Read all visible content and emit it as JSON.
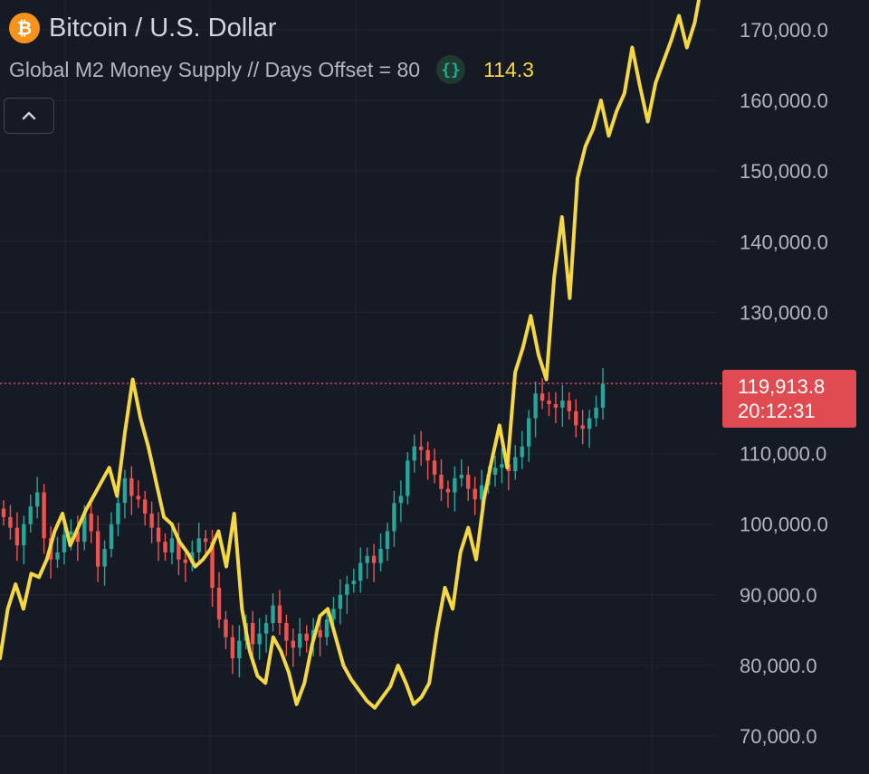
{
  "header": {
    "symbol_title": "Bitcoin / U.S. Dollar",
    "btc_logo_glyph": "₿",
    "indicator_name": "Global M2 Money Supply // Days Offset = 80",
    "indicator_icon": "{}",
    "indicator_value": "114.3",
    "collapse_icon": "^"
  },
  "price_label": {
    "price": "119,913.8",
    "countdown": "20:12:31"
  },
  "colors": {
    "background": "#161a25",
    "grid": "#232632",
    "m2_line": "#f5d742",
    "candle_up": "#26a69a",
    "candle_down": "#ef5350",
    "price_line": "#e04b52"
  },
  "chart_data": {
    "type": "line",
    "ylim": [
      67500,
      177500
    ],
    "y_ticks": [
      70000,
      80000,
      90000,
      100000,
      110000,
      120000,
      130000,
      140000,
      150000,
      160000,
      170000
    ],
    "y_tick_labels": [
      "70,000.0",
      "80,000.0",
      "90,000.0",
      "100,000.0",
      "110,000.0",
      "120,000.0",
      "130,000.0",
      "140,000.0",
      "150,000.0",
      "160,000.0",
      "170,000.0"
    ],
    "current_price": 119913.8,
    "series": [
      {
        "name": "Global M2 Money Supply",
        "style": "line",
        "values": [
          81000,
          88000,
          91500,
          88000,
          93000,
          92500,
          95000,
          99000,
          101500,
          97000,
          99500,
          102000,
          104000,
          106000,
          108000,
          104000,
          113000,
          120500,
          115000,
          111000,
          106000,
          101000,
          100000,
          97500,
          96000,
          94000,
          95000,
          96500,
          99000,
          94000,
          101500,
          88000,
          82000,
          78500,
          77500,
          84000,
          82000,
          79000,
          74500,
          77500,
          83000,
          87000,
          88000,
          84000,
          80000,
          78000,
          76500,
          75000,
          74000,
          75500,
          77000,
          80000,
          77500,
          74500,
          75500,
          77500,
          85000,
          91000,
          88000,
          96000,
          99500,
          95000,
          103500,
          109000,
          114000,
          108000,
          121500,
          125000,
          129500,
          124000,
          120500,
          135000,
          143500,
          132000,
          149000,
          153500,
          156000,
          160000,
          155000,
          158500,
          161000,
          167500,
          162000,
          157000,
          162500,
          165500,
          168500,
          172000,
          167500,
          171000,
          177000
        ],
        "color": "#f5d742"
      },
      {
        "name": "",
        "style": "candles",
        "values": [
          101000,
          99500,
          97000,
          100000,
          102500,
          104500,
          98000,
          95000,
          96000,
          98500,
          99000,
          97500,
          101500,
          99000,
          94000,
          96500,
          100000,
          103000,
          106500,
          104000,
          103500,
          101500,
          99500,
          97500,
          96000,
          98000,
          95000,
          94500,
          96000,
          98000,
          97500,
          91000,
          86500,
          84000,
          81000,
          83500,
          86000,
          83000,
          84500,
          86000,
          88500,
          86000,
          83500,
          82500,
          84500,
          83500,
          85000,
          84000,
          86500,
          88000,
          90000,
          91500,
          92000,
          94500,
          95500,
          94500,
          96500,
          99000,
          103000,
          104000,
          109000,
          111000,
          110500,
          109000,
          107000,
          105000,
          104500,
          106500,
          107000,
          105000,
          103500,
          105500,
          107000,
          108000,
          108500,
          107500,
          109500,
          111000,
          115000,
          118500,
          117500,
          117000,
          116500,
          117500,
          116000,
          114000,
          113500,
          115000,
          116500,
          119913.8
        ],
        "color": "#26a69a"
      }
    ]
  }
}
